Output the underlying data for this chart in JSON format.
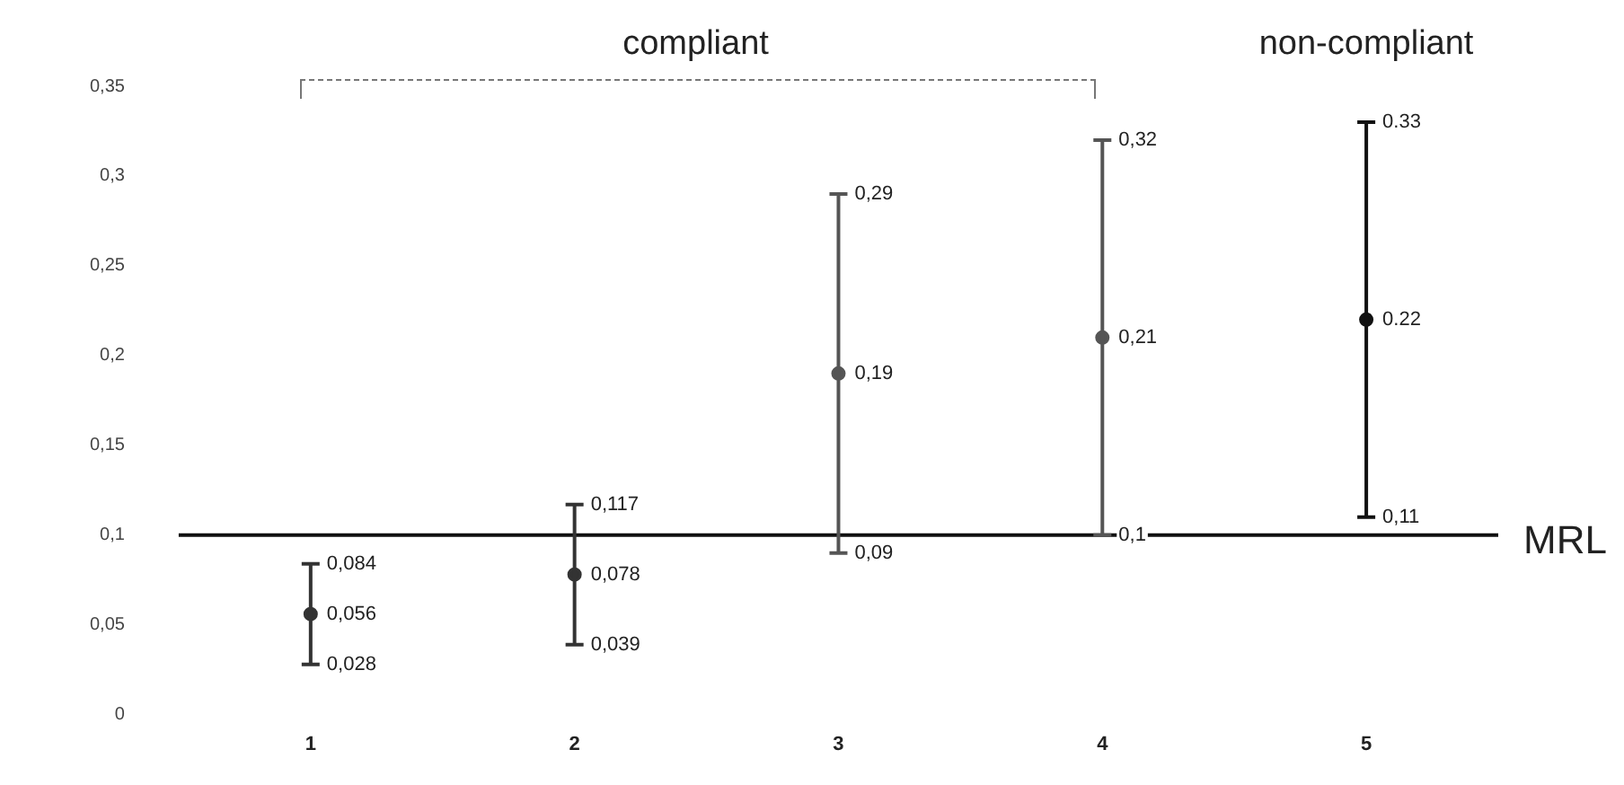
{
  "chart_data": {
    "type": "scatter",
    "categories": [
      "1",
      "2",
      "3",
      "4",
      "5"
    ],
    "values": [
      0.056,
      0.078,
      0.19,
      0.21,
      0.22
    ],
    "errors": [
      [
        0.028,
        0.084
      ],
      [
        0.039,
        0.117
      ],
      [
        0.09,
        0.29
      ],
      [
        0.1,
        0.32
      ],
      [
        0.11,
        0.33
      ]
    ],
    "value_labels": [
      "0,056",
      "0,078",
      "0,19",
      "0,21",
      "0.22"
    ],
    "colors": [
      "#333333",
      "#333333",
      "#555555",
      "#555555",
      "#111111"
    ],
    "ylim": [
      0,
      0.35
    ],
    "yticks": [
      {
        "value": 0,
        "label": "0"
      },
      {
        "value": 0.05,
        "label": "0,05"
      },
      {
        "value": 0.1,
        "label": "0,1"
      },
      {
        "value": 0.15,
        "label": "0,15"
      },
      {
        "value": 0.2,
        "label": "0,2"
      },
      {
        "value": 0.25,
        "label": "0,25"
      },
      {
        "value": 0.3,
        "label": "0,3"
      },
      {
        "value": 0.35,
        "label": "0,35"
      }
    ],
    "ref_lines": [
      {
        "axis": "y",
        "value": 0.1,
        "label": "MRL",
        "color": "#111111"
      }
    ],
    "annotations": [
      "compliant",
      "non-compliant",
      {
        "text": "0,028",
        "x": "1",
        "y": 0.028
      },
      {
        "text": "0,084",
        "x": "1",
        "y": 0.084
      },
      {
        "text": "0,039",
        "x": "2",
        "y": 0.039
      },
      {
        "text": "0,117",
        "x": "2",
        "y": 0.117
      },
      {
        "text": "0,09",
        "x": "3",
        "y": 0.09
      },
      {
        "text": "0,29",
        "x": "3",
        "y": 0.29
      },
      {
        "text": "0,1",
        "x": "4",
        "y": 0.1
      },
      {
        "text": "0,32",
        "x": "4",
        "y": 0.32
      },
      {
        "text": "0,11",
        "x": "5",
        "y": 0.11
      },
      {
        "text": "0.33",
        "x": "5",
        "y": 0.33
      }
    ],
    "grid": false,
    "legend": false,
    "marker": "circle"
  }
}
